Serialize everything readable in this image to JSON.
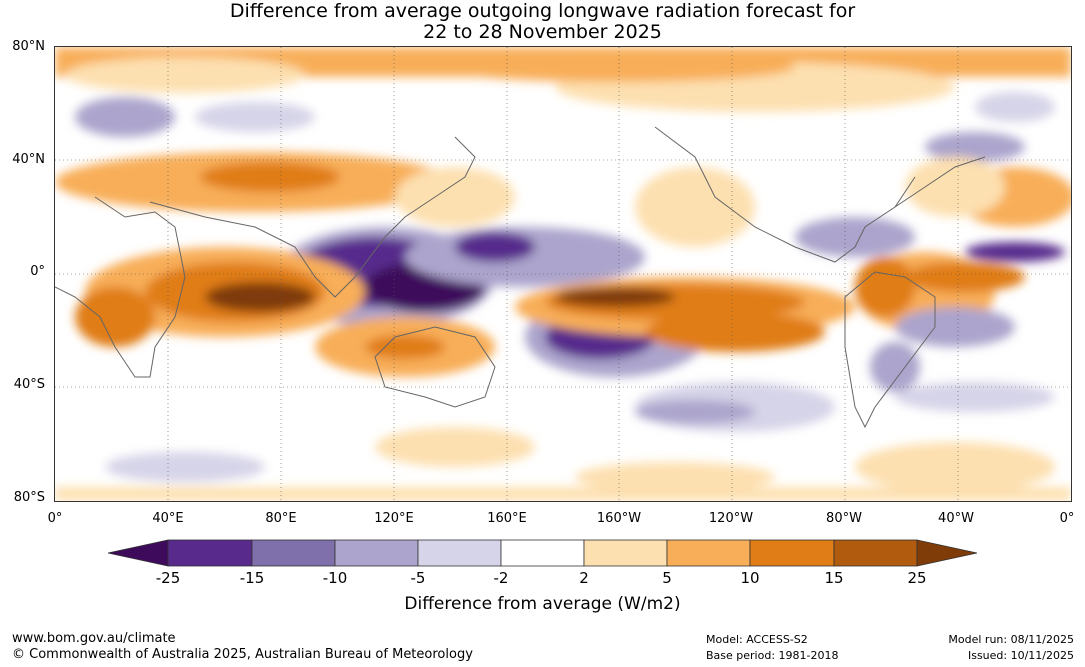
{
  "title": {
    "line1": "Difference from average outgoing longwave radiation forecast for",
    "line2": "22 to 28 November 2025"
  },
  "map": {
    "lat_labels": [
      "80°N",
      "40°N",
      "0°",
      "40°S",
      "80°S"
    ],
    "lon_labels": [
      "0°",
      "40°E",
      "80°E",
      "120°E",
      "160°E",
      "160°W",
      "120°W",
      "80°W",
      "40°W",
      "0°"
    ]
  },
  "colorbar": {
    "ticks": [
      "-25",
      "-15",
      "-10",
      "-5",
      "-2",
      "2",
      "5",
      "10",
      "15",
      "25"
    ],
    "colors": [
      "#3d0a5c",
      "#572a8c",
      "#7f6fab",
      "#aca4cc",
      "#d6d4e8",
      "#ffffff",
      "#fde0b0",
      "#f8ae58",
      "#e07d17",
      "#b15b0f",
      "#7f3b08"
    ],
    "label": "Difference from average (W/m2)"
  },
  "footer": {
    "url": "www.bom.gov.au/climate",
    "copyright": "© Commonwealth of Australia 2025, Australian Bureau of Meteorology",
    "model": "Model: ACCESS-S2",
    "base_period": "Base period: 1981-2018",
    "model_run": "Model run: 08/11/2025",
    "issued": "Issued: 10/11/2025"
  }
}
